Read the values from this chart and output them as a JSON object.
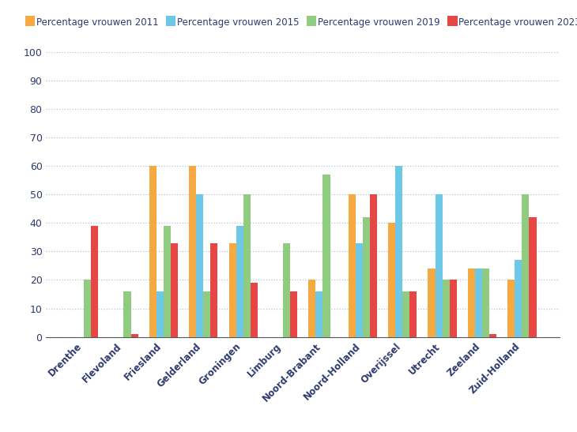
{
  "categories": [
    "Drenthe",
    "Flevoland",
    "Friesland",
    "Gelderland",
    "Groningen",
    "Limburg",
    "Noord-Brabant",
    "Noord-Holland",
    "Overijssel",
    "Utrecht",
    "Zeeland",
    "Zuid-Holland"
  ],
  "series": {
    "Percentage vrouwen 2011": [
      0,
      0,
      60,
      60,
      33,
      0,
      20,
      50,
      40,
      24,
      24,
      20
    ],
    "Percentage vrouwen 2015": [
      0,
      0,
      16,
      50,
      39,
      0,
      16,
      33,
      60,
      50,
      24,
      27
    ],
    "Percentage vrouwen 2019": [
      20,
      16,
      39,
      16,
      50,
      33,
      57,
      42,
      16,
      20,
      24,
      50
    ],
    "Percentage vrouwen 2023": [
      39,
      1,
      33,
      33,
      19,
      16,
      0,
      50,
      16,
      20,
      1,
      42
    ]
  },
  "colors": {
    "Percentage vrouwen 2011": "#F5A940",
    "Percentage vrouwen 2015": "#6DC8E8",
    "Percentage vrouwen 2019": "#8FCC80",
    "Percentage vrouwen 2023": "#E84545"
  },
  "ylim": [
    0,
    100
  ],
  "yticks": [
    0,
    10,
    20,
    30,
    40,
    50,
    60,
    70,
    80,
    90,
    100
  ],
  "background_color": "#ffffff",
  "grid_color": "#aec6cf",
  "bar_width": 0.18,
  "figsize": [
    7.3,
    5.47
  ],
  "dpi": 100,
  "tick_color": "#2e3a6e",
  "label_color": "#2e3a6e"
}
